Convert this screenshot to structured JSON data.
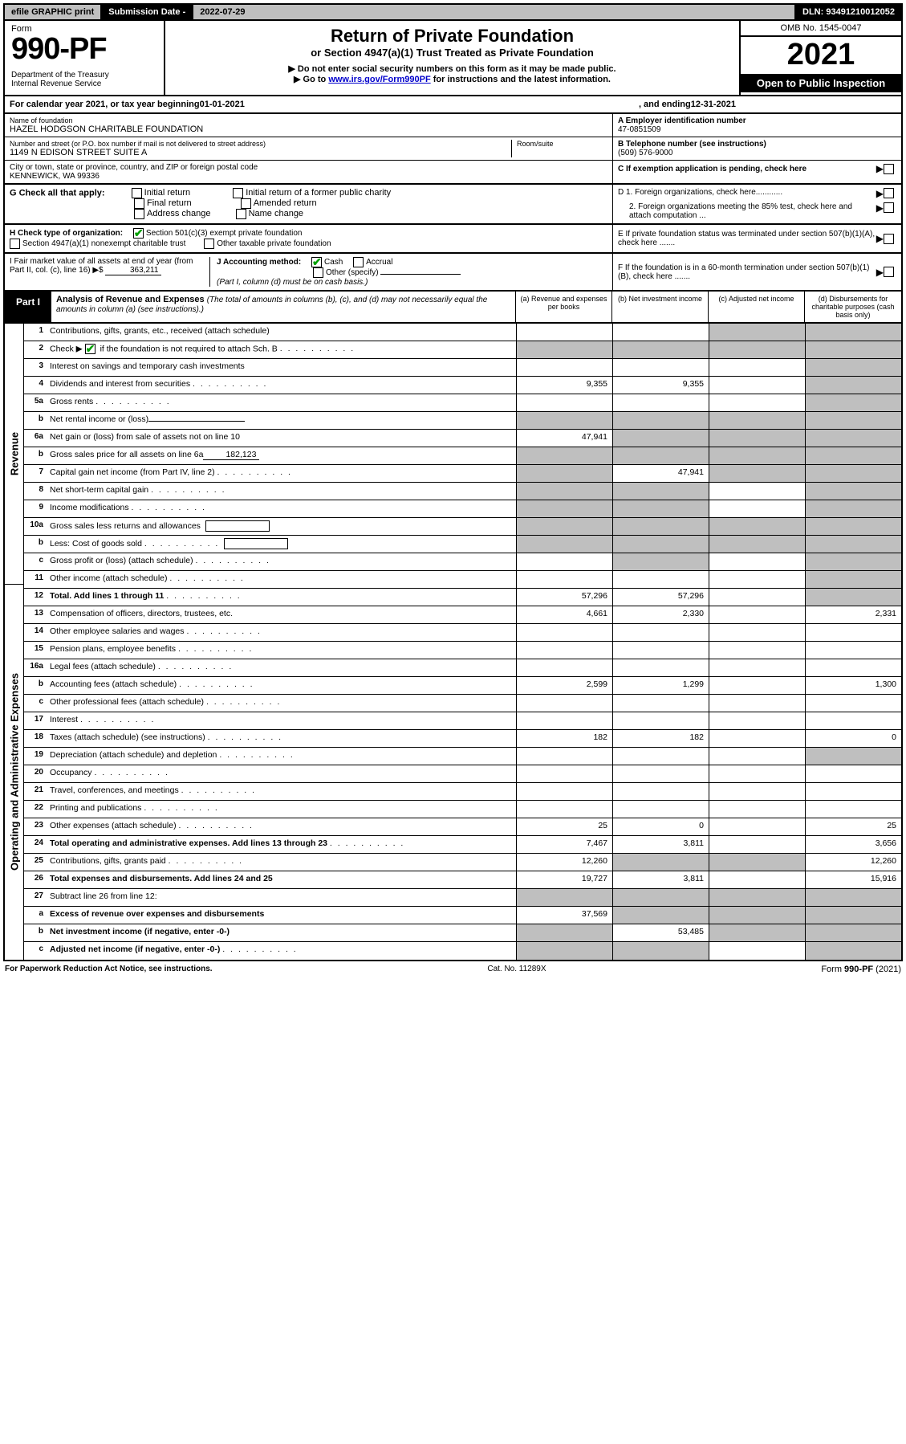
{
  "topbar": {
    "efile": "efile GRAPHIC print",
    "sub_label": "Submission Date - ",
    "sub_date": "2022-07-29",
    "dln": "DLN: 93491210012052"
  },
  "header": {
    "form_word": "Form",
    "form_num": "990-PF",
    "dept": "Department of the Treasury\nInternal Revenue Service",
    "title": "Return of Private Foundation",
    "subtitle": "or Section 4947(a)(1) Trust Treated as Private Foundation",
    "note1": "▶ Do not enter social security numbers on this form as it may be made public.",
    "note2_pre": "▶ Go to ",
    "note2_link": "www.irs.gov/Form990PF",
    "note2_post": " for instructions and the latest information.",
    "omb": "OMB No. 1545-0047",
    "year": "2021",
    "open": "Open to Public Inspection"
  },
  "cal_year": {
    "pre": "For calendar year 2021, or tax year beginning ",
    "begin": "01-01-2021",
    "mid": ", and ending ",
    "end": "12-31-2021"
  },
  "entity": {
    "name_lbl": "Name of foundation",
    "name": "HAZEL HODGSON CHARITABLE FOUNDATION",
    "addr_lbl": "Number and street (or P.O. box number if mail is not delivered to street address)",
    "addr": "1149 N EDISON STREET SUITE A",
    "room_lbl": "Room/suite",
    "city_lbl": "City or town, state or province, country, and ZIP or foreign postal code",
    "city": "KENNEWICK, WA  99336",
    "a_lbl": "A Employer identification number",
    "a_val": "47-0851509",
    "b_lbl": "B Telephone number (see instructions)",
    "b_val": "(509) 576-9000",
    "c_lbl": "C If exemption application is pending, check here"
  },
  "g": {
    "label": "G Check all that apply:",
    "opts": [
      "Initial return",
      "Final return",
      "Address change",
      "Initial return of a former public charity",
      "Amended return",
      "Name change"
    ]
  },
  "d": {
    "d1": "D 1. Foreign organizations, check here............",
    "d2": "2. Foreign organizations meeting the 85% test, check here and attach computation ..."
  },
  "h": {
    "label": "H Check type of organization:",
    "opt1": "Section 501(c)(3) exempt private foundation",
    "opt2": "Section 4947(a)(1) nonexempt charitable trust",
    "opt3": "Other taxable private foundation"
  },
  "e": "E  If private foundation status was terminated under section 507(b)(1)(A), check here .......",
  "i": {
    "label": "I Fair market value of all assets at end of year (from Part II, col. (c), line 16) ▶$ ",
    "val": "363,211"
  },
  "j": {
    "label": "J Accounting method:",
    "cash": "Cash",
    "accrual": "Accrual",
    "other": "Other (specify)",
    "note": "(Part I, column (d) must be on cash basis.)"
  },
  "f": "F  If the foundation is in a 60-month termination under section 507(b)(1)(B), check here .......",
  "part1": {
    "tab": "Part I",
    "title": "Analysis of Revenue and Expenses",
    "title_ital": " (The total of amounts in columns (b), (c), and (d) may not necessarily equal the amounts in column (a) (see instructions).)",
    "cols": {
      "a": "(a)  Revenue and expenses per books",
      "b": "(b)  Net investment income",
      "c": "(c)  Adjusted net income",
      "d": "(d)  Disbursements for charitable purposes (cash basis only)"
    }
  },
  "vlabels": {
    "rev": "Revenue",
    "exp": "Operating and Administrative Expenses"
  },
  "rows": {
    "r1": "Contributions, gifts, grants, etc., received (attach schedule)",
    "r2_pre": "Check ▶ ",
    "r2_post": " if the foundation is not required to attach Sch. B",
    "r3": "Interest on savings and temporary cash investments",
    "r4": "Dividends and interest from securities",
    "r5a": "Gross rents",
    "r5b": "Net rental income or (loss)",
    "r6a": "Net gain or (loss) from sale of assets not on line 10",
    "r6b_pre": "Gross sales price for all assets on line 6a",
    "r6b_val": "182,123",
    "r7": "Capital gain net income (from Part IV, line 2)",
    "r8": "Net short-term capital gain",
    "r9": "Income modifications",
    "r10a": "Gross sales less returns and allowances",
    "r10b": "Less: Cost of goods sold",
    "r10c": "Gross profit or (loss) (attach schedule)",
    "r11": "Other income (attach schedule)",
    "r12": "Total. Add lines 1 through 11",
    "r13": "Compensation of officers, directors, trustees, etc.",
    "r14": "Other employee salaries and wages",
    "r15": "Pension plans, employee benefits",
    "r16a": "Legal fees (attach schedule)",
    "r16b": "Accounting fees (attach schedule)",
    "r16c": "Other professional fees (attach schedule)",
    "r17": "Interest",
    "r18": "Taxes (attach schedule) (see instructions)",
    "r19": "Depreciation (attach schedule) and depletion",
    "r20": "Occupancy",
    "r21": "Travel, conferences, and meetings",
    "r22": "Printing and publications",
    "r23": "Other expenses (attach schedule)",
    "r24": "Total operating and administrative expenses. Add lines 13 through 23",
    "r25": "Contributions, gifts, grants paid",
    "r26": "Total expenses and disbursements. Add lines 24 and 25",
    "r27": "Subtract line 26 from line 12:",
    "r27a": "Excess of revenue over expenses and disbursements",
    "r27b": "Net investment income (if negative, enter -0-)",
    "r27c": "Adjusted net income (if negative, enter -0-)"
  },
  "vals": {
    "r4": {
      "a": "9,355",
      "b": "9,355"
    },
    "r6a": {
      "a": "47,941"
    },
    "r7": {
      "b": "47,941"
    },
    "r12": {
      "a": "57,296",
      "b": "57,296"
    },
    "r13": {
      "a": "4,661",
      "b": "2,330",
      "d": "2,331"
    },
    "r16b": {
      "a": "2,599",
      "b": "1,299",
      "d": "1,300"
    },
    "r18": {
      "a": "182",
      "b": "182",
      "d": "0"
    },
    "r23": {
      "a": "25",
      "b": "0",
      "d": "25"
    },
    "r24": {
      "a": "7,467",
      "b": "3,811",
      "d": "3,656"
    },
    "r25": {
      "a": "12,260",
      "d": "12,260"
    },
    "r26": {
      "a": "19,727",
      "b": "3,811",
      "d": "15,916"
    },
    "r27a": {
      "a": "37,569"
    },
    "r27b": {
      "b": "53,485"
    }
  },
  "footer": {
    "left": "For Paperwork Reduction Act Notice, see instructions.",
    "mid": "Cat. No. 11289X",
    "right": "Form 990-PF (2021)"
  }
}
